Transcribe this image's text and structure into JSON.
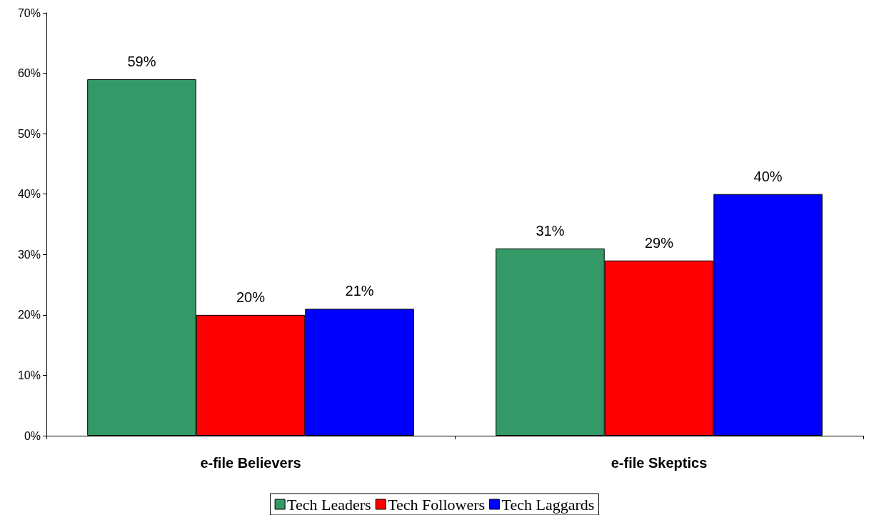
{
  "chart_data": {
    "type": "bar",
    "categories": [
      "e-file Believers",
      "e-file Skeptics"
    ],
    "series": [
      {
        "name": "Tech Leaders",
        "color": "#339966",
        "values": [
          59,
          31
        ],
        "value_labels": [
          "59%",
          "31%"
        ]
      },
      {
        "name": "Tech Followers",
        "color": "#ff0000",
        "values": [
          20,
          29
        ],
        "value_labels": [
          "20%",
          "29%"
        ]
      },
      {
        "name": "Tech Laggards",
        "color": "#0000ff",
        "values": [
          21,
          40
        ],
        "value_labels": [
          "21%",
          "40%"
        ]
      }
    ],
    "ylim": [
      0,
      70
    ],
    "yticks": [
      {
        "value": 0,
        "label": "0%"
      },
      {
        "value": 10,
        "label": "10%"
      },
      {
        "value": 20,
        "label": "20%"
      },
      {
        "value": 30,
        "label": "30%"
      },
      {
        "value": 40,
        "label": "40%"
      },
      {
        "value": 50,
        "label": "50%"
      },
      {
        "value": 60,
        "label": "60%"
      },
      {
        "value": 70,
        "label": "70%"
      }
    ],
    "grid": false,
    "legend": "bottom"
  }
}
